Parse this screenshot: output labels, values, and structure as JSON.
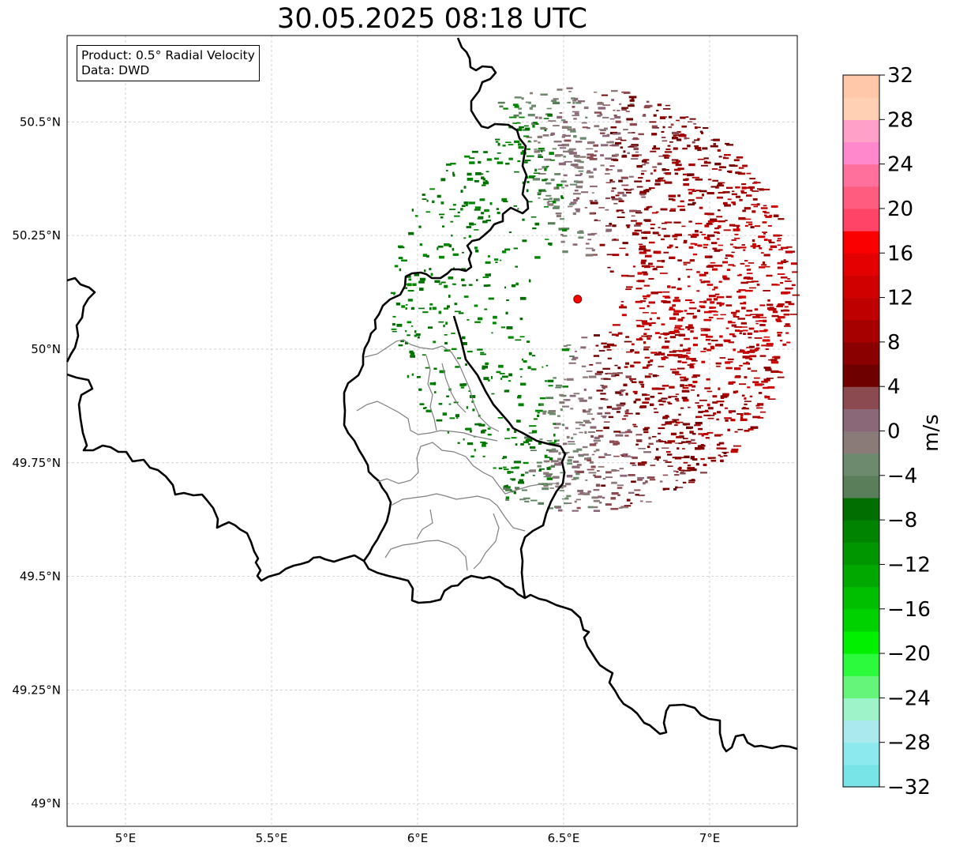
{
  "title": "30.05.2025 08:18 UTC",
  "info": {
    "line1": "Product: 0.5° Radial Velocity",
    "line2": "Data: DWD"
  },
  "map": {
    "lon_range": [
      4.8,
      7.3
    ],
    "lat_range": [
      48.95,
      50.69
    ],
    "x_ticks": [
      {
        "v": 5.0,
        "label": "5°E"
      },
      {
        "v": 5.5,
        "label": "5.5°E"
      },
      {
        "v": 6.0,
        "label": "6°E"
      },
      {
        "v": 6.5,
        "label": "6.5°E"
      },
      {
        "v": 7.0,
        "label": "7°E"
      }
    ],
    "y_ticks": [
      {
        "v": 49.0,
        "label": "49°N"
      },
      {
        "v": 49.25,
        "label": "49.25°N"
      },
      {
        "v": 49.5,
        "label": "49.5°N"
      },
      {
        "v": 49.75,
        "label": "49.75°N"
      },
      {
        "v": 50.0,
        "label": "50°N"
      },
      {
        "v": 50.25,
        "label": "50.25°N"
      },
      {
        "v": 50.5,
        "label": "50.5°N"
      }
    ],
    "radar_site": {
      "lon": 6.548,
      "lat": 50.11,
      "color": "#ff0000"
    },
    "grid": true
  },
  "colorbar": {
    "label": "m/s",
    "range": [
      -32,
      32
    ],
    "step": 2,
    "tick_labels": [
      "32",
      "28",
      "24",
      "20",
      "16",
      "12",
      "8",
      "4",
      "0",
      "−4",
      "−8",
      "−12",
      "−16",
      "−20",
      "−24",
      "−28",
      "−32"
    ],
    "colors": [
      "#78e4e8",
      "#8ceaee",
      "#aae9ee",
      "#9ef3c8",
      "#64f57a",
      "#2cfa3c",
      "#00f000",
      "#00d200",
      "#00be00",
      "#00a800",
      "#009600",
      "#008400",
      "#006e00",
      "#5a7d5a",
      "#6e8a6e",
      "#8a7a78",
      "#8a6878",
      "#8a4a50",
      "#6e0000",
      "#8a0000",
      "#a60000",
      "#be0000",
      "#d00000",
      "#e40000",
      "#fa0000",
      "#ff4468",
      "#ff5c80",
      "#ff709c",
      "#ff88cc",
      "#ffa0c8",
      "#ffd0b4",
      "#ffc8a8"
    ]
  }
}
